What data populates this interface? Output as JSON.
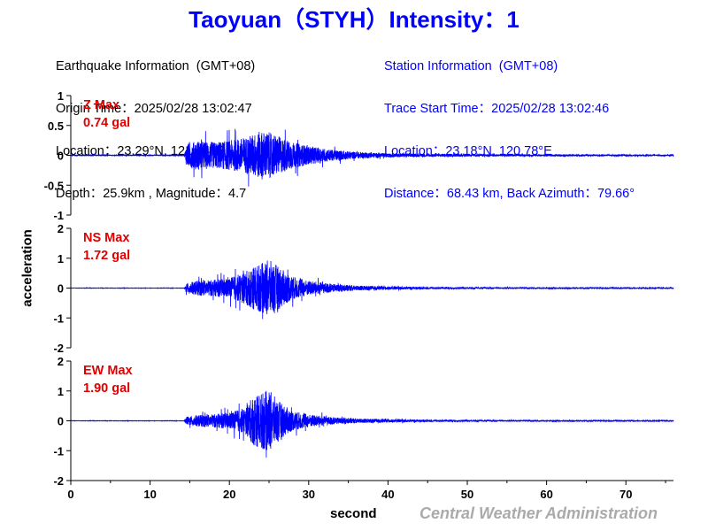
{
  "title": "Taoyuan（STYH）Intensity：1",
  "earthquake_info": {
    "heading": "Earthquake Information  (GMT+08)",
    "origin_time": "Origin Time：2025/02/28 13:02:47",
    "location": "Location：23.29°N, 121.44°E",
    "depth_magnitude": "Depth：25.9km , Magnitude：4.7"
  },
  "station_info": {
    "heading": "Station Information  (GMT+08)",
    "trace_start": "Trace Start Time：2025/02/28 13:02:46",
    "location": "Location：23.18°N, 120.78°E",
    "distance": "Distance：68.43 km, Back Azimuth：79.66°"
  },
  "ylabel": "acceleration",
  "xlabel": "second",
  "credit": "Central Weather Administration",
  "colors": {
    "trace": "#0000ff",
    "max_label": "#e00000",
    "title": "#0000ff"
  },
  "chart_data": {
    "type": "line",
    "x_range": [
      0,
      76
    ],
    "x_ticks": [
      0,
      10,
      20,
      30,
      40,
      50,
      60,
      70
    ],
    "p_arrival_s": 14.5,
    "panels": [
      {
        "name": "Z",
        "max_label": "Z Max",
        "max_value": "0.74 gal",
        "ylim": [
          -1,
          1
        ],
        "y_ticks": [
          1,
          0.5,
          0,
          -0.5,
          -1
        ],
        "envelope": [
          [
            0,
            0.01
          ],
          [
            14.3,
            0.01
          ],
          [
            14.6,
            0.35
          ],
          [
            16,
            0.45
          ],
          [
            18,
            0.4
          ],
          [
            20,
            0.45
          ],
          [
            21,
            0.5
          ],
          [
            22,
            0.55
          ],
          [
            23,
            0.65
          ],
          [
            24,
            0.74
          ],
          [
            25,
            0.7
          ],
          [
            26,
            0.6
          ],
          [
            27,
            0.5
          ],
          [
            28,
            0.4
          ],
          [
            30,
            0.28
          ],
          [
            33,
            0.17
          ],
          [
            36,
            0.1
          ],
          [
            40,
            0.06
          ],
          [
            45,
            0.04
          ],
          [
            55,
            0.03
          ],
          [
            76,
            0.02
          ]
        ]
      },
      {
        "name": "NS",
        "max_label": "NS Max",
        "max_value": "1.72 gal",
        "ylim": [
          -2,
          2
        ],
        "y_ticks": [
          2,
          1,
          0,
          -1,
          -2
        ],
        "envelope": [
          [
            0,
            0.01
          ],
          [
            14.3,
            0.01
          ],
          [
            14.6,
            0.3
          ],
          [
            16,
            0.45
          ],
          [
            18,
            0.5
          ],
          [
            20,
            0.6
          ],
          [
            21,
            0.8
          ],
          [
            22,
            1.0
          ],
          [
            23,
            1.3
          ],
          [
            24,
            1.5
          ],
          [
            25,
            1.72
          ],
          [
            26,
            1.4
          ],
          [
            27,
            1.0
          ],
          [
            28,
            0.7
          ],
          [
            30,
            0.45
          ],
          [
            33,
            0.25
          ],
          [
            36,
            0.15
          ],
          [
            40,
            0.1
          ],
          [
            45,
            0.06
          ],
          [
            55,
            0.04
          ],
          [
            76,
            0.03
          ]
        ]
      },
      {
        "name": "EW",
        "max_label": "EW Max",
        "max_value": "1.90 gal",
        "ylim": [
          -2,
          2
        ],
        "y_ticks": [
          2,
          1,
          0,
          -1,
          -2
        ],
        "envelope": [
          [
            0,
            0.01
          ],
          [
            14.3,
            0.01
          ],
          [
            14.6,
            0.25
          ],
          [
            16,
            0.35
          ],
          [
            18,
            0.4
          ],
          [
            20,
            0.5
          ],
          [
            22,
            0.8
          ],
          [
            23,
            1.5
          ],
          [
            24,
            1.7
          ],
          [
            25,
            1.9
          ],
          [
            26,
            1.3
          ],
          [
            27,
            0.9
          ],
          [
            28,
            0.6
          ],
          [
            30,
            0.4
          ],
          [
            33,
            0.22
          ],
          [
            36,
            0.14
          ],
          [
            40,
            0.1
          ],
          [
            45,
            0.06
          ],
          [
            55,
            0.04
          ],
          [
            76,
            0.03
          ]
        ]
      }
    ]
  }
}
